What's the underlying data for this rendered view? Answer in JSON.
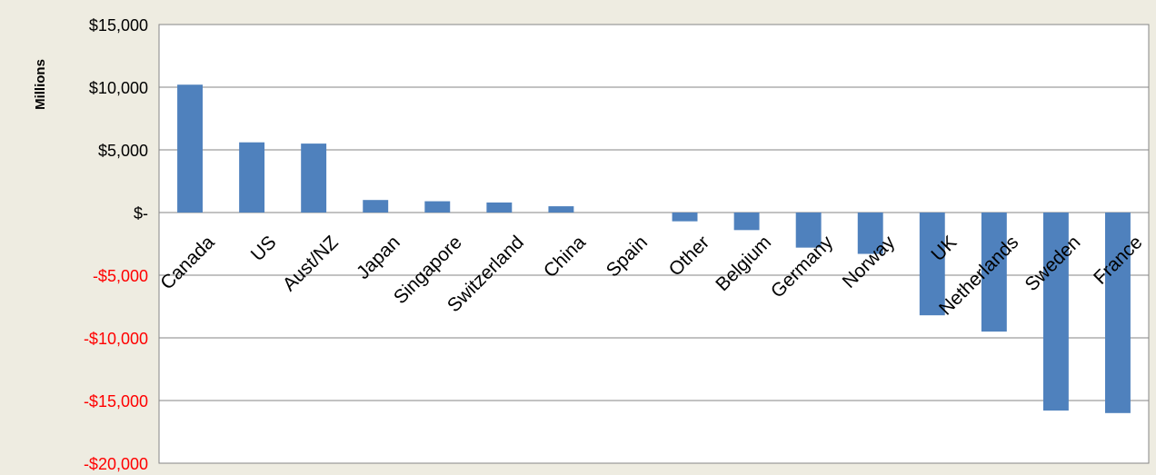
{
  "chart_data": {
    "type": "bar",
    "title": "",
    "xlabel": "",
    "ylabel": "Millions",
    "ylim": [
      -20000,
      15000
    ],
    "ytick_step": 5000,
    "yticks": [
      {
        "value": 15000,
        "label": "$15,000"
      },
      {
        "value": 10000,
        "label": "$10,000"
      },
      {
        "value": 5000,
        "label": "$5,000"
      },
      {
        "value": 0,
        "label": "$-"
      },
      {
        "value": -5000,
        "label": "-$5,000"
      },
      {
        "value": -10000,
        "label": "-$10,000"
      },
      {
        "value": -15000,
        "label": "-$15,000"
      },
      {
        "value": -20000,
        "label": "-$20,000"
      }
    ],
    "categories": [
      "Canada",
      "US",
      "Aust/NZ",
      "Japan",
      "Singapore",
      "Switzerland",
      "China",
      "Spain",
      "Other",
      "Belgium",
      "Germany",
      "Norway",
      "UK",
      "Netherlands",
      "Sweden",
      "France"
    ],
    "values": [
      10200,
      5600,
      5500,
      1000,
      900,
      800,
      500,
      0,
      -700,
      -1400,
      -2800,
      -3300,
      -8200,
      -9500,
      -15800,
      -16000
    ],
    "grid": true,
    "legend": "none",
    "colors": {
      "bar": "#4F81BD",
      "negative_tick_label": "#FF0000",
      "positive_tick_label": "#000000",
      "background": "#EEECE1",
      "plot_background": "#FFFFFF",
      "gridline": "#868686"
    }
  }
}
